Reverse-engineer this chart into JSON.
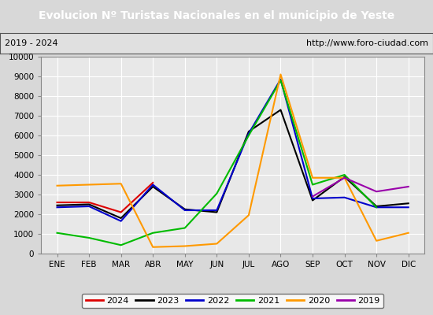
{
  "title": "Evolucion Nº Turistas Nacionales en el municipio de Yeste",
  "subtitle_left": "2019 - 2024",
  "subtitle_right": "http://www.foro-ciudad.com",
  "title_bg_color": "#4a90d9",
  "title_text_color": "#ffffff",
  "x_labels": [
    "ENE",
    "FEB",
    "MAR",
    "ABR",
    "MAY",
    "JUN",
    "JUL",
    "AGO",
    "SEP",
    "OCT",
    "NOV",
    "DIC"
  ],
  "ylim": [
    0,
    10000
  ],
  "yticks": [
    0,
    1000,
    2000,
    3000,
    4000,
    5000,
    6000,
    7000,
    8000,
    9000,
    10000
  ],
  "series": {
    "2024": {
      "color": "#dd0000",
      "linewidth": 1.5,
      "values": [
        2600,
        2600,
        2100,
        3600,
        null,
        null,
        null,
        null,
        null,
        null,
        null,
        null
      ]
    },
    "2023": {
      "color": "#000000",
      "linewidth": 1.5,
      "values": [
        2450,
        2500,
        1800,
        3400,
        2250,
        2100,
        6200,
        7300,
        2700,
        3900,
        2400,
        2550
      ]
    },
    "2022": {
      "color": "#0000cc",
      "linewidth": 1.5,
      "values": [
        2350,
        2400,
        1650,
        3500,
        2200,
        2200,
        6100,
        8850,
        2800,
        2850,
        2350,
        2350
      ]
    },
    "2021": {
      "color": "#00bb00",
      "linewidth": 1.5,
      "values": [
        1050,
        800,
        430,
        1050,
        1300,
        3050,
        6000,
        8800,
        3500,
        4000,
        2350,
        null
      ]
    },
    "2020": {
      "color": "#ff9900",
      "linewidth": 1.5,
      "values": [
        3450,
        3500,
        3550,
        330,
        380,
        500,
        1950,
        9100,
        3850,
        3850,
        650,
        1050
      ]
    },
    "2019": {
      "color": "#9900aa",
      "linewidth": 1.5,
      "values": [
        null,
        null,
        null,
        null,
        null,
        null,
        null,
        null,
        2900,
        3850,
        3150,
        3400
      ]
    }
  },
  "legend_order": [
    "2024",
    "2023",
    "2022",
    "2021",
    "2020",
    "2019"
  ],
  "plot_bg_color": "#e8e8e8",
  "grid_color": "#ffffff",
  "outer_bg_color": "#d8d8d8"
}
